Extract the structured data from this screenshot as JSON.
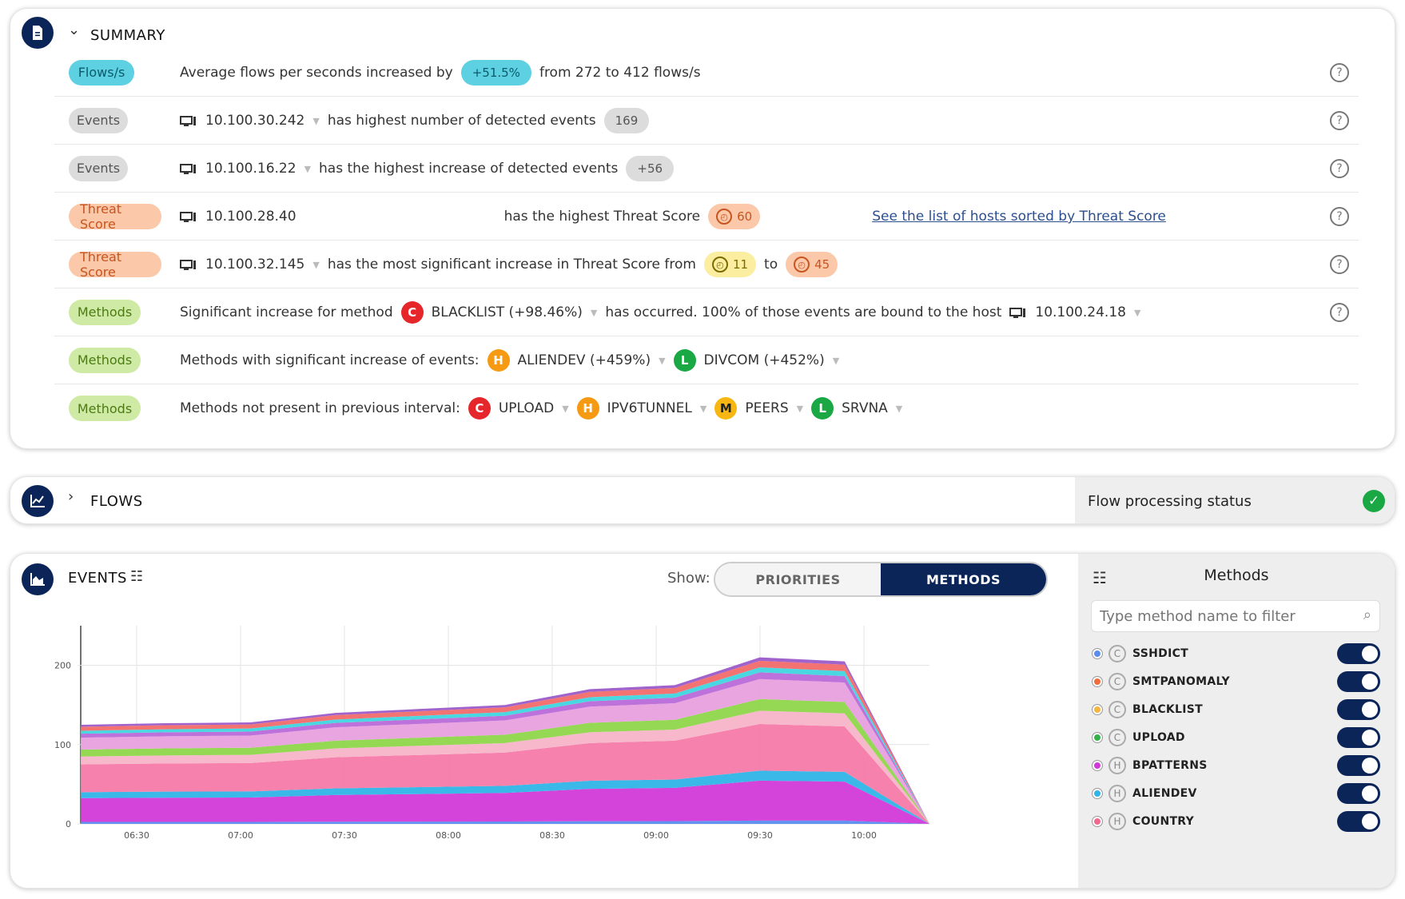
{
  "summary": {
    "title": "SUMMARY",
    "rows": [
      {
        "tag": "Flows/s",
        "text1": "Average flows per seconds increased by",
        "pill": "+51.5%",
        "text2": "from 272 to 412 flows/s"
      },
      {
        "tag": "Events",
        "host": "10.100.30.242",
        "text1": "has highest number of detected events",
        "pill": "169"
      },
      {
        "tag": "Events",
        "host": "10.100.16.22",
        "text1": "has the highest increase of detected events",
        "pill": "+56"
      },
      {
        "tag": "Threat Score",
        "host": "10.100.28.40",
        "text1": "has the highest Threat Score",
        "score": "60",
        "link": "See the list of hosts sorted by Threat Score"
      },
      {
        "tag": "Threat Score",
        "host": "10.100.32.145",
        "text1": "has the most significant increase in Threat Score from",
        "score_from": "11",
        "to": "to",
        "score_to": "45"
      },
      {
        "tag": "Methods",
        "text1": "Significant increase for method",
        "badge": "C",
        "method": "BLACKLIST (+98.46%)",
        "text2": "has occurred. 100% of those events are bound to the host",
        "host": "10.100.24.18"
      },
      {
        "tag": "Methods",
        "text1": "Methods with significant increase of events:",
        "m1_badge": "H",
        "m1": "ALIENDEV (+459%)",
        "m2_badge": "L",
        "m2": "DIVCOM (+452%)"
      },
      {
        "tag": "Methods",
        "text1": "Methods not present in previous interval:",
        "m1_badge": "C",
        "m1": "UPLOAD",
        "m2_badge": "H",
        "m2": "IPV6TUNNEL",
        "m3_badge": "M",
        "m3": "PEERS",
        "m4_badge": "L",
        "m4": "SRVNA"
      }
    ]
  },
  "flows": {
    "title": "FLOWS",
    "status": "Flow processing status"
  },
  "events": {
    "title": "EVENTS",
    "show_label": "Show:",
    "toggle_off": "PRIORITIES",
    "toggle_on": "METHODS",
    "side_title": "Methods",
    "filter_placeholder": "Type method name to filter",
    "methods": [
      {
        "name": "SSHDICT",
        "cat": "C",
        "color": "#5b8def"
      },
      {
        "name": "SMTPANOMALY",
        "cat": "C",
        "color": "#f26b3a"
      },
      {
        "name": "BLACKLIST",
        "cat": "C",
        "color": "#f5b640"
      },
      {
        "name": "UPLOAD",
        "cat": "C",
        "color": "#33b24a"
      },
      {
        "name": "BPATTERNS",
        "cat": "H",
        "color": "#d23ad8"
      },
      {
        "name": "ALIENDEV",
        "cat": "H",
        "color": "#2fb5e8"
      },
      {
        "name": "COUNTRY",
        "cat": "H",
        "color": "#f06a8f"
      }
    ]
  },
  "chart_data": {
    "type": "area",
    "x": [
      "06:30",
      "07:00",
      "07:30",
      "08:00",
      "08:30",
      "09:00",
      "09:30",
      "10:00"
    ],
    "yticks": [
      0,
      100,
      200
    ],
    "ylim": [
      0,
      250
    ],
    "total_approx": [
      125,
      127,
      128,
      140,
      145,
      150,
      170,
      175,
      210,
      205,
      0
    ]
  }
}
